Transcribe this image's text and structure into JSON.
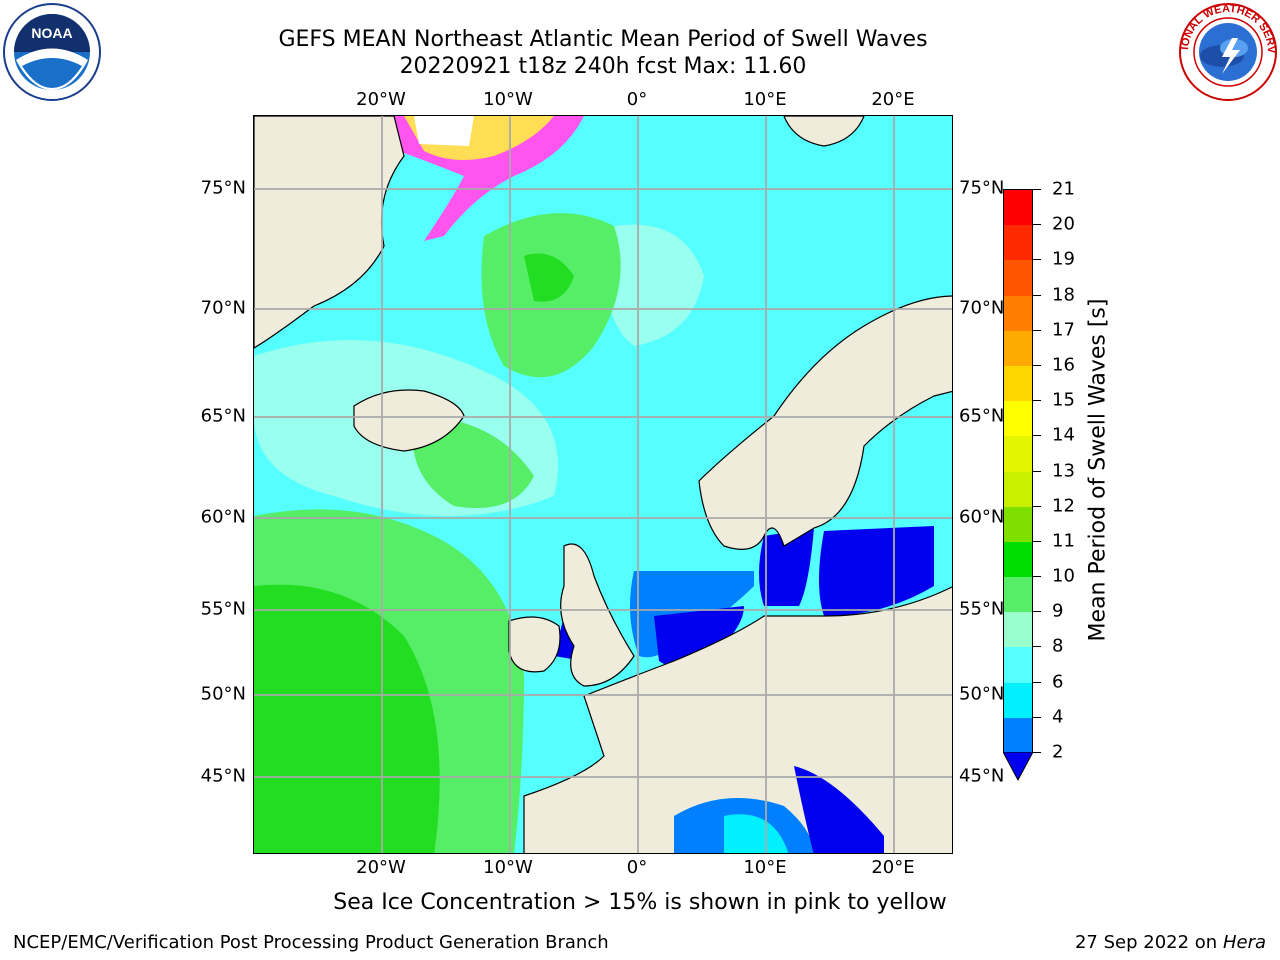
{
  "title_line1": "GEFS MEAN Northeast Atlantic Mean Period of Swell Waves",
  "title_line2": "20220921 t18z 240h fcst   Max: 11.60",
  "lon_labels": [
    "20°W",
    "10°W",
    "0°",
    "10°E",
    "20°E"
  ],
  "lat_labels": [
    "75°N",
    "70°N",
    "65°N",
    "60°N",
    "55°N",
    "50°N",
    "45°N"
  ],
  "colorbar": {
    "label": "Mean Period of Swell Waves [s]",
    "ticks": [
      "21",
      "20",
      "19",
      "18",
      "17",
      "16",
      "15",
      "14",
      "13",
      "12",
      "11",
      "10",
      "9",
      "8",
      "6",
      "4",
      "2"
    ],
    "colors": [
      "#ff0000",
      "#ff2a00",
      "#ff5500",
      "#ff8000",
      "#ffaa00",
      "#ffd500",
      "#ffff00",
      "#e5f500",
      "#c8f000",
      "#7fe000",
      "#00dd00",
      "#55ee66",
      "#99ffcc",
      "#55ffff",
      "#00f0ff",
      "#0080ff"
    ],
    "extend_color": "#0000ee"
  },
  "note": "Sea Ice Concentration > 15% is shown in pink to yellow",
  "footer_left": "NCEP/EMC/Verification Post Processing Product Generation Branch",
  "footer_right_date": "27 Sep 2022 on",
  "footer_right_host": "Hera",
  "noaa_logo_text": "NOAA",
  "nws_logo_text": "NATIONAL WEATHER SERVICE"
}
